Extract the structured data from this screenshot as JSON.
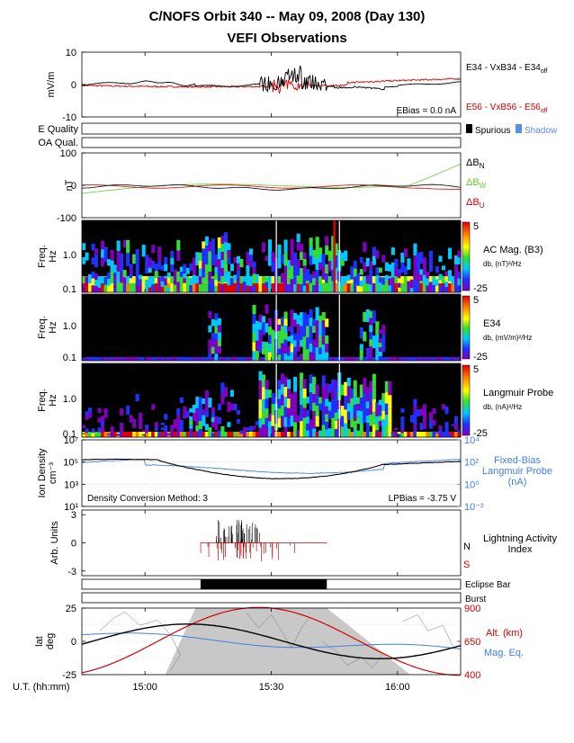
{
  "title": "C/NOFS Orbit 340  --  May 09, 2008 (Day 130)",
  "subtitle": "VEFI Observations",
  "xaxis": {
    "label": "U.T. (hh:mm)",
    "range_min": [
      14.75,
      16.25
    ],
    "ticks": [
      {
        "label": "15:00",
        "value": 15.0
      },
      {
        "label": "15:30",
        "value": 15.5
      },
      {
        "label": "16:00",
        "value": 16.0
      }
    ]
  },
  "chart_data": [
    {
      "id": "efield",
      "type": "line",
      "ylabel": "mV/m",
      "ylim": [
        -10,
        10
      ],
      "yticks": [
        "10",
        "0",
        "-10"
      ],
      "series": [
        {
          "name": "E34 - VxB34 - E34",
          "sub": "off",
          "color": "#000000"
        },
        {
          "name": "E56 - VxB56 - E56",
          "sub": "off",
          "color": "#d40000"
        }
      ],
      "annotation": "EBias = 0.0 nA"
    },
    {
      "id": "quality",
      "type": "bar",
      "rows": [
        "E Quality",
        "OA Qual."
      ],
      "legend": [
        {
          "name": "Spurious",
          "color": "#000000"
        },
        {
          "name": "Shadow",
          "color": "#5b8de8"
        }
      ]
    },
    {
      "id": "magnetic",
      "type": "line",
      "ylabel": "nT",
      "ylim": [
        -100,
        100
      ],
      "yticks": [
        "100",
        "0",
        "-100"
      ],
      "series": [
        {
          "name": "ΔB",
          "sub": "N",
          "color": "#000000"
        },
        {
          "name": "ΔB",
          "sub": "W",
          "color": "#66cc33"
        },
        {
          "name": "ΔB",
          "sub": "U",
          "color": "#d40000"
        }
      ]
    },
    {
      "id": "acmag",
      "type": "heatmap",
      "ylabel": "Freq.",
      "yunit": "Hz",
      "yticks": [
        "1.0",
        "0.1"
      ],
      "name": "AC Mag. (B3)",
      "unit": "db, (nT)²/Hz",
      "colorbar": {
        "max": "5",
        "min": "-25"
      }
    },
    {
      "id": "e34spec",
      "type": "heatmap",
      "ylabel": "Freq.",
      "yunit": "Hz",
      "yticks": [
        "1.0",
        "0.1"
      ],
      "name": "E34",
      "unit": "db, (mV/m)²/Hz",
      "colorbar": {
        "max": "5",
        "min": "-25"
      }
    },
    {
      "id": "lpspec",
      "type": "heatmap",
      "ylabel": "Freq.",
      "yunit": "Hz",
      "yticks": [
        "1.0",
        "0.1"
      ],
      "name": "Langmuir Probe",
      "unit": "db, (nA)²/Hz",
      "colorbar": {
        "max": "5",
        "min": "-25"
      }
    },
    {
      "id": "density",
      "type": "line",
      "ylabel": "Ion Density",
      "yunit": "cm⁻³",
      "yticks_left": [
        "10⁷",
        "10⁵",
        "10³",
        "10¹"
      ],
      "yticks_right": [
        "10⁴",
        "10²",
        "10⁰",
        "10⁻²"
      ],
      "series": [
        {
          "name": "Ion Density",
          "color": "#000000"
        },
        {
          "name": "Fixed-Bias Langmuir Probe (nA)",
          "color": "#3f7fe0"
        }
      ],
      "legend_lines": [
        "Fixed-Bias",
        "Langmuir Probe",
        "(nA)"
      ],
      "annotation_left": "Density Conversion Method: 3",
      "annotation_right": "LPBias = -3.75 V"
    },
    {
      "id": "lightning",
      "type": "bar",
      "ylabel": "Arb. Units",
      "yticks": [
        "3",
        "0",
        "-3"
      ],
      "name_lines": [
        "Lightning Activity",
        "Index"
      ],
      "north_label": "N",
      "south_label": "S",
      "series": [
        {
          "name": "N",
          "color": "#000000"
        },
        {
          "name": "S",
          "color": "#d40000"
        }
      ]
    },
    {
      "id": "eclipse",
      "type": "bar",
      "rows": [
        "Eclipse Bar",
        "Burst"
      ],
      "eclipse_start": 15.22,
      "eclipse_end": 15.72
    },
    {
      "id": "orbit",
      "type": "line",
      "ylabel": "lat",
      "yunit": "deg",
      "yticks_left": [
        "25",
        "0",
        "-25"
      ],
      "yticks_right": [
        "900",
        "650",
        "400"
      ],
      "series": [
        {
          "name": "lat",
          "color": "#000000"
        },
        {
          "name": "Alt. (km)",
          "color": "#d40000"
        },
        {
          "name": "Mag. Eq.",
          "color": "#3f7fe0"
        }
      ]
    }
  ],
  "colors": {
    "black": "#000000",
    "red": "#d40000",
    "green": "#66cc33",
    "blue": "#3f7fe0",
    "shadow": "#5b8de8",
    "night": "#c8c8c8"
  }
}
